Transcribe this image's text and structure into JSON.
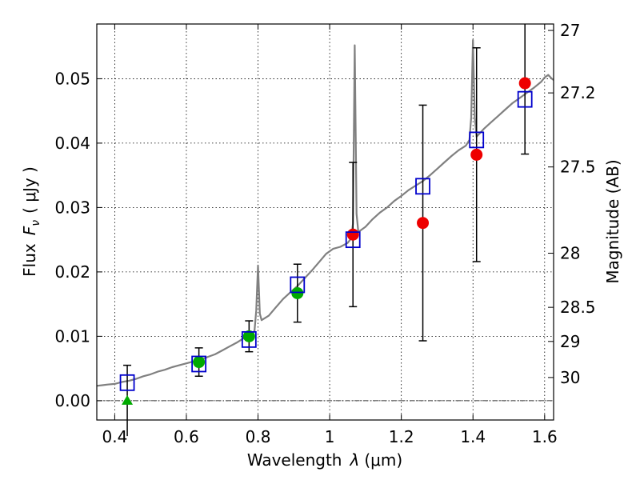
{
  "chart_data": {
    "type": "scatter",
    "xlabel": "Wavelength",
    "xlabel_symbol": "λ",
    "xlabel_unit": "(μm)",
    "ylabel": "Flux",
    "ylabel_symbol": "F",
    "ylabel_subscript": "ν",
    "ylabel_unit": "( μJy )",
    "ylabel_right": "Magnitude (AB)",
    "xlim": [
      0.35,
      1.625
    ],
    "ylim": [
      -0.003,
      0.0585
    ],
    "grid": true,
    "x_ticks": [
      0.4,
      0.6,
      0.8,
      1.0,
      1.2,
      1.4,
      1.6
    ],
    "x_tick_labels": [
      "0.4",
      "0.6",
      "0.8",
      "1",
      "1.2",
      "1.4",
      "1.6"
    ],
    "y_ticks": [
      0.0,
      0.01,
      0.02,
      0.03,
      0.04,
      0.05
    ],
    "y_tick_labels": [
      "0.00",
      "0.01",
      "0.02",
      "0.03",
      "0.04",
      "0.05"
    ],
    "right_ticks": [
      {
        "flux": 0.0575,
        "label": "27"
      },
      {
        "flux": 0.0478,
        "label": "27.2"
      },
      {
        "flux": 0.0363,
        "label": "27.5"
      },
      {
        "flux": 0.0229,
        "label": "28"
      },
      {
        "flux": 0.0145,
        "label": "28.5"
      },
      {
        "flux": 0.0092,
        "label": "29"
      },
      {
        "flux": 0.0036,
        "label": "30"
      }
    ],
    "zero_line": 0.0,
    "template_spectrum": {
      "color": "#808080",
      "points": [
        [
          0.35,
          0.0023
        ],
        [
          0.38,
          0.0025
        ],
        [
          0.4,
          0.0026
        ],
        [
          0.42,
          0.0029
        ],
        [
          0.44,
          0.0031
        ],
        [
          0.46,
          0.0034
        ],
        [
          0.48,
          0.0038
        ],
        [
          0.5,
          0.0041
        ],
        [
          0.52,
          0.0045
        ],
        [
          0.54,
          0.0048
        ],
        [
          0.56,
          0.0052
        ],
        [
          0.58,
          0.0055
        ],
        [
          0.6,
          0.0058
        ],
        [
          0.62,
          0.0061
        ],
        [
          0.64,
          0.0063
        ],
        [
          0.66,
          0.0068
        ],
        [
          0.68,
          0.0072
        ],
        [
          0.7,
          0.0078
        ],
        [
          0.72,
          0.0084
        ],
        [
          0.74,
          0.009
        ],
        [
          0.76,
          0.0097
        ],
        [
          0.78,
          0.0104
        ],
        [
          0.79,
          0.0108
        ],
        [
          0.795,
          0.014
        ],
        [
          0.8,
          0.021
        ],
        [
          0.805,
          0.0135
        ],
        [
          0.81,
          0.0125
        ],
        [
          0.83,
          0.0132
        ],
        [
          0.85,
          0.0145
        ],
        [
          0.87,
          0.0158
        ],
        [
          0.89,
          0.0168
        ],
        [
          0.91,
          0.0178
        ],
        [
          0.93,
          0.019
        ],
        [
          0.95,
          0.0202
        ],
        [
          0.97,
          0.0215
        ],
        [
          0.99,
          0.0228
        ],
        [
          1.01,
          0.0236
        ],
        [
          1.03,
          0.0239
        ],
        [
          1.05,
          0.0245
        ],
        [
          1.06,
          0.0252
        ],
        [
          1.065,
          0.0275
        ],
        [
          1.07,
          0.0552
        ],
        [
          1.075,
          0.029
        ],
        [
          1.08,
          0.0262
        ],
        [
          1.1,
          0.027
        ],
        [
          1.12,
          0.0282
        ],
        [
          1.14,
          0.0292
        ],
        [
          1.16,
          0.03
        ],
        [
          1.18,
          0.031
        ],
        [
          1.2,
          0.0318
        ],
        [
          1.22,
          0.0327
        ],
        [
          1.24,
          0.0334
        ],
        [
          1.26,
          0.0341
        ],
        [
          1.28,
          0.035
        ],
        [
          1.3,
          0.036
        ],
        [
          1.32,
          0.037
        ],
        [
          1.34,
          0.038
        ],
        [
          1.36,
          0.0389
        ],
        [
          1.38,
          0.0396
        ],
        [
          1.39,
          0.0405
        ],
        [
          1.395,
          0.044
        ],
        [
          1.4,
          0.056
        ],
        [
          1.405,
          0.044
        ],
        [
          1.41,
          0.041
        ],
        [
          1.43,
          0.0422
        ],
        [
          1.45,
          0.0432
        ],
        [
          1.47,
          0.0442
        ],
        [
          1.49,
          0.0452
        ],
        [
          1.51,
          0.0462
        ],
        [
          1.53,
          0.047
        ],
        [
          1.55,
          0.0478
        ],
        [
          1.57,
          0.0486
        ],
        [
          1.59,
          0.0495
        ],
        [
          1.6,
          0.0502
        ],
        [
          1.61,
          0.0506
        ],
        [
          1.62,
          0.05
        ],
        [
          1.625,
          0.0498
        ]
      ]
    },
    "model_photometry": {
      "marker": "open-square",
      "color": "#0000cc",
      "points": [
        {
          "x": 0.435,
          "y": 0.0028
        },
        {
          "x": 0.635,
          "y": 0.0057
        },
        {
          "x": 0.775,
          "y": 0.0095
        },
        {
          "x": 0.91,
          "y": 0.018
        },
        {
          "x": 1.065,
          "y": 0.025
        },
        {
          "x": 1.26,
          "y": 0.0333
        },
        {
          "x": 1.41,
          "y": 0.0405
        },
        {
          "x": 1.545,
          "y": 0.0468
        }
      ]
    },
    "observed_photometry": [
      {
        "x": 0.435,
        "y": 0.0,
        "err": 0.0055,
        "marker": "triangle",
        "color": "#00aa00"
      },
      {
        "x": 0.635,
        "y": 0.006,
        "err": 0.0022,
        "marker": "circle",
        "color": "#00aa00"
      },
      {
        "x": 0.775,
        "y": 0.01,
        "err": 0.0024,
        "marker": "circle",
        "color": "#00aa00"
      },
      {
        "x": 0.91,
        "y": 0.0167,
        "err": 0.0045,
        "marker": "circle",
        "color": "#00aa00"
      },
      {
        "x": 1.065,
        "y": 0.0258,
        "err": 0.0112,
        "marker": "circle",
        "color": "#ee0000"
      },
      {
        "x": 1.26,
        "y": 0.0276,
        "err": 0.0183,
        "marker": "circle",
        "color": "#ee0000"
      },
      {
        "x": 1.41,
        "y": 0.0382,
        "err": 0.0166,
        "marker": "circle",
        "color": "#ee0000"
      },
      {
        "x": 1.545,
        "y": 0.0493,
        "err": 0.011,
        "marker": "circle",
        "color": "#ee0000"
      }
    ]
  }
}
